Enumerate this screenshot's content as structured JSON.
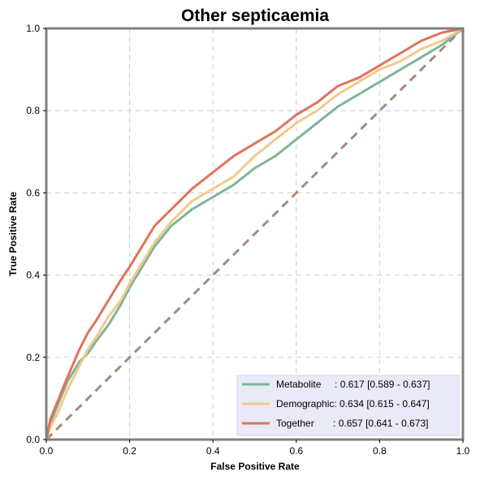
{
  "chart_data": {
    "type": "line",
    "title": "Other septicaemia",
    "xlabel": "False Positive Rate",
    "ylabel": "True Positive Rate",
    "xlim": [
      0,
      1
    ],
    "ylim": [
      0,
      1
    ],
    "xticks": [
      "0.0",
      "0.2",
      "0.4",
      "0.6",
      "0.8",
      "1.0"
    ],
    "yticks": [
      "0.0",
      "0.2",
      "0.4",
      "0.6",
      "0.8",
      "1.0"
    ],
    "grid": true,
    "legend_position": "bottom-right",
    "diagonal": {
      "x": [
        0,
        1
      ],
      "y": [
        0,
        1
      ],
      "color": "#a68a7b",
      "style": "dashed"
    },
    "series": [
      {
        "name": "Metabolite",
        "legend_label": "Metabolite     : 0.617 [0.589 - 0.637]",
        "color": "#7fb596",
        "x": [
          0,
          0.01,
          0.03,
          0.05,
          0.08,
          0.1,
          0.12,
          0.15,
          0.18,
          0.2,
          0.23,
          0.26,
          0.3,
          0.35,
          0.4,
          0.45,
          0.5,
          0.55,
          0.6,
          0.65,
          0.7,
          0.75,
          0.8,
          0.85,
          0.9,
          0.95,
          1.0
        ],
        "y": [
          0,
          0.04,
          0.09,
          0.14,
          0.19,
          0.21,
          0.24,
          0.28,
          0.33,
          0.37,
          0.42,
          0.47,
          0.52,
          0.56,
          0.59,
          0.62,
          0.66,
          0.69,
          0.73,
          0.77,
          0.81,
          0.84,
          0.87,
          0.9,
          0.93,
          0.96,
          1.0
        ]
      },
      {
        "name": "Demographic",
        "legend_label": "Demographic: 0.634 [0.615 - 0.647]",
        "color": "#f3c98b",
        "x": [
          0,
          0.01,
          0.03,
          0.05,
          0.08,
          0.1,
          0.12,
          0.15,
          0.18,
          0.2,
          0.23,
          0.26,
          0.3,
          0.35,
          0.4,
          0.45,
          0.5,
          0.55,
          0.6,
          0.65,
          0.7,
          0.75,
          0.8,
          0.85,
          0.9,
          0.95,
          1.0
        ],
        "y": [
          0,
          0.03,
          0.07,
          0.12,
          0.18,
          0.22,
          0.25,
          0.3,
          0.34,
          0.38,
          0.43,
          0.48,
          0.53,
          0.58,
          0.61,
          0.64,
          0.69,
          0.73,
          0.77,
          0.8,
          0.84,
          0.87,
          0.9,
          0.92,
          0.95,
          0.97,
          1.0
        ]
      },
      {
        "name": "Together",
        "legend_label": "Together       : 0.657 [0.641 - 0.673]",
        "color": "#e0735a",
        "x": [
          0,
          0.01,
          0.03,
          0.05,
          0.08,
          0.1,
          0.12,
          0.15,
          0.18,
          0.2,
          0.23,
          0.26,
          0.3,
          0.35,
          0.4,
          0.45,
          0.5,
          0.55,
          0.6,
          0.65,
          0.7,
          0.75,
          0.8,
          0.85,
          0.9,
          0.95,
          1.0
        ],
        "y": [
          0,
          0.05,
          0.1,
          0.15,
          0.22,
          0.26,
          0.29,
          0.34,
          0.39,
          0.42,
          0.47,
          0.52,
          0.56,
          0.61,
          0.65,
          0.69,
          0.72,
          0.75,
          0.79,
          0.82,
          0.86,
          0.88,
          0.91,
          0.94,
          0.97,
          0.99,
          1.0
        ]
      }
    ]
  }
}
